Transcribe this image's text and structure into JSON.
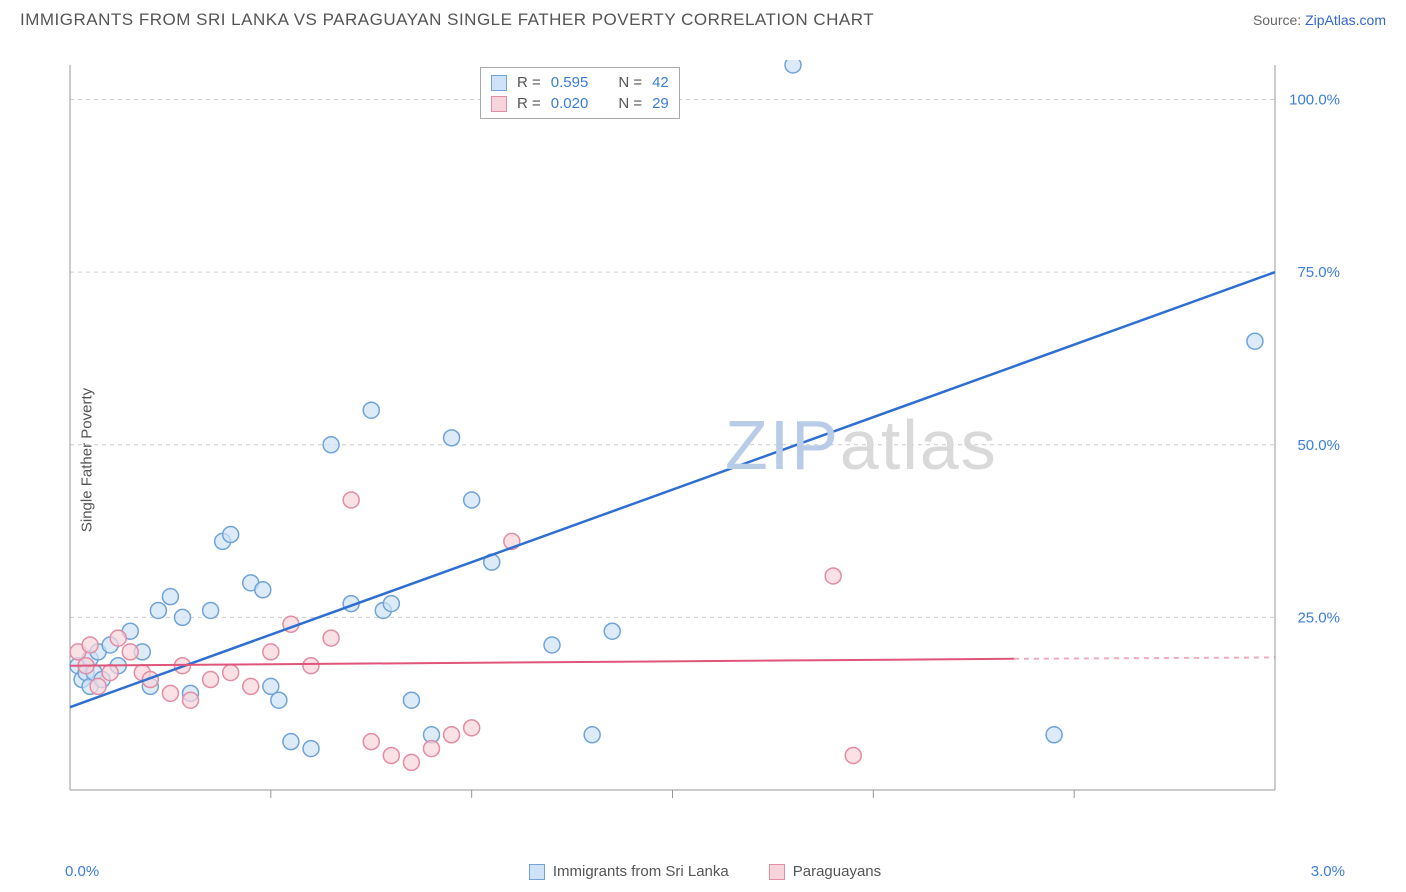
{
  "title": "IMMIGRANTS FROM SRI LANKA VS PARAGUAYAN SINGLE FATHER POVERTY CORRELATION CHART",
  "source_label": "Source: ",
  "source_link": "ZipAtlas.com",
  "ylabel": "Single Father Poverty",
  "watermark": {
    "zip": "ZIP",
    "atlas": "atlas",
    "zip_color": "#b8cce8",
    "atlas_color": "#d9d9d9"
  },
  "chart": {
    "type": "scatter",
    "xlim": [
      0.0,
      3.0
    ],
    "ylim": [
      0.0,
      105.0
    ],
    "xtick_labels": [
      "0.0%",
      "3.0%"
    ],
    "xtick_positions": [
      0.0,
      3.0
    ],
    "xtick_minor": [
      0.5,
      1.0,
      1.5,
      2.0,
      2.5
    ],
    "ytick_labels": [
      "25.0%",
      "50.0%",
      "75.0%",
      "100.0%"
    ],
    "ytick_positions": [
      25.0,
      50.0,
      75.0,
      100.0
    ],
    "ytick_color": "#3b7dd8",
    "xtick_color": "#3b7dd8",
    "grid_color": "#cccccc",
    "axis_color": "#999999",
    "background_color": "#ffffff",
    "marker_radius": 8,
    "marker_stroke_width": 1.5,
    "series": [
      {
        "name": "Immigrants from Sri Lanka",
        "fill": "#cfe2f7",
        "stroke": "#6fa3d9",
        "line_color": "#2e6fd1",
        "line_width": 2.5,
        "r_label": "R =",
        "r_value": "0.595",
        "n_label": "N =",
        "n_value": "42",
        "trend": {
          "x1": 0.0,
          "y1": 12.0,
          "x2": 3.0,
          "y2": 75.0
        },
        "points": [
          [
            0.02,
            18
          ],
          [
            0.03,
            16
          ],
          [
            0.04,
            17
          ],
          [
            0.05,
            19
          ],
          [
            0.05,
            15
          ],
          [
            0.06,
            17
          ],
          [
            0.07,
            20
          ],
          [
            0.08,
            16
          ],
          [
            0.1,
            21
          ],
          [
            0.12,
            18
          ],
          [
            0.15,
            23
          ],
          [
            0.18,
            20
          ],
          [
            0.2,
            15
          ],
          [
            0.22,
            26
          ],
          [
            0.25,
            28
          ],
          [
            0.28,
            25
          ],
          [
            0.3,
            14
          ],
          [
            0.35,
            26
          ],
          [
            0.38,
            36
          ],
          [
            0.4,
            37
          ],
          [
            0.45,
            30
          ],
          [
            0.48,
            29
          ],
          [
            0.5,
            15
          ],
          [
            0.52,
            13
          ],
          [
            0.55,
            7
          ],
          [
            0.6,
            6
          ],
          [
            0.65,
            50
          ],
          [
            0.7,
            27
          ],
          [
            0.75,
            55
          ],
          [
            0.78,
            26
          ],
          [
            0.8,
            27
          ],
          [
            0.85,
            13
          ],
          [
            0.9,
            8
          ],
          [
            0.95,
            51
          ],
          [
            1.0,
            42
          ],
          [
            1.05,
            33
          ],
          [
            1.2,
            21
          ],
          [
            1.3,
            8
          ],
          [
            1.35,
            23
          ],
          [
            1.8,
            105
          ],
          [
            2.45,
            8
          ],
          [
            2.95,
            65
          ]
        ]
      },
      {
        "name": "Paraguayans",
        "fill": "#f7d4dc",
        "stroke": "#e48ca3",
        "line_color": "#e0557a",
        "line_width": 2,
        "r_label": "R =",
        "r_value": "0.020",
        "n_label": "N =",
        "n_value": "29",
        "trend": {
          "x1": 0.0,
          "y1": 18.0,
          "x2": 2.35,
          "y2": 19.0
        },
        "trend_dash": {
          "x1": 2.35,
          "y1": 19.0,
          "x2": 3.0,
          "y2": 19.2
        },
        "points": [
          [
            0.02,
            20
          ],
          [
            0.04,
            18
          ],
          [
            0.05,
            21
          ],
          [
            0.07,
            15
          ],
          [
            0.1,
            17
          ],
          [
            0.12,
            22
          ],
          [
            0.15,
            20
          ],
          [
            0.18,
            17
          ],
          [
            0.2,
            16
          ],
          [
            0.25,
            14
          ],
          [
            0.28,
            18
          ],
          [
            0.3,
            13
          ],
          [
            0.35,
            16
          ],
          [
            0.4,
            17
          ],
          [
            0.45,
            15
          ],
          [
            0.5,
            20
          ],
          [
            0.55,
            24
          ],
          [
            0.6,
            18
          ],
          [
            0.65,
            22
          ],
          [
            0.7,
            42
          ],
          [
            0.75,
            7
          ],
          [
            0.8,
            5
          ],
          [
            0.85,
            4
          ],
          [
            0.9,
            6
          ],
          [
            0.95,
            8
          ],
          [
            1.0,
            9
          ],
          [
            1.1,
            36
          ],
          [
            1.9,
            31
          ],
          [
            1.95,
            5
          ]
        ]
      }
    ]
  },
  "x_legend": {
    "series1": "Immigrants from Sri Lanka",
    "series2": "Paraguayans"
  }
}
